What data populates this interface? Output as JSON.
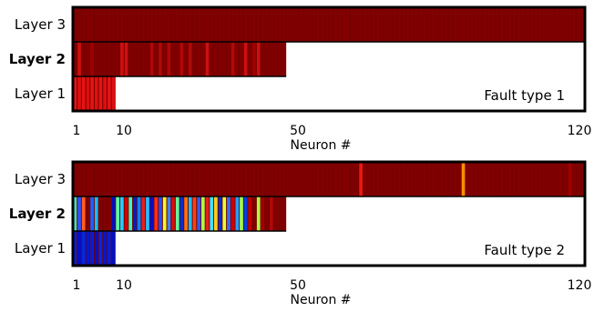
{
  "chart_data": [
    {
      "type": "heatmap",
      "annotation": "Fault type 1",
      "xlabel": "Neuron #",
      "xticks": [
        "1",
        "10",
        "50",
        "120"
      ],
      "x_tick_values": [
        1,
        10,
        50,
        120
      ],
      "colormap": "jet",
      "background_color": "#800000",
      "layers": [
        {
          "label": "Layer 3",
          "neurons": 120,
          "highlights": []
        },
        {
          "label": "Layer 2",
          "neurons": 50,
          "highlights": [
            {
              "neuron": 2,
              "color": "#cc1010"
            },
            {
              "neuron": 5,
              "color": "#a00000"
            },
            {
              "neuron": 12,
              "color": "#cc1010"
            },
            {
              "neuron": 13,
              "color": "#cc1010"
            },
            {
              "neuron": 19,
              "color": "#b00808"
            },
            {
              "neuron": 21,
              "color": "#b00808"
            },
            {
              "neuron": 23,
              "color": "#b00808"
            },
            {
              "neuron": 26,
              "color": "#b00808"
            },
            {
              "neuron": 28,
              "color": "#b00808"
            },
            {
              "neuron": 32,
              "color": "#cc1010"
            },
            {
              "neuron": 38,
              "color": "#b00808"
            },
            {
              "neuron": 41,
              "color": "#cc1010"
            },
            {
              "neuron": 43,
              "color": "#a00000"
            },
            {
              "neuron": 44,
              "color": "#cc1010"
            }
          ]
        },
        {
          "label": "Layer 1",
          "neurons": 10,
          "highlights": [
            {
              "neuron": 1,
              "color": "#e41414"
            },
            {
              "neuron": 2,
              "color": "#dc1010"
            },
            {
              "neuron": 3,
              "color": "#e41414"
            },
            {
              "neuron": 4,
              "color": "#d81010"
            },
            {
              "neuron": 5,
              "color": "#e41414"
            },
            {
              "neuron": 6,
              "color": "#dc1010"
            },
            {
              "neuron": 7,
              "color": "#e41414"
            },
            {
              "neuron": 8,
              "color": "#d81010"
            },
            {
              "neuron": 9,
              "color": "#e41414"
            },
            {
              "neuron": 10,
              "color": "#dc1010"
            }
          ]
        }
      ]
    },
    {
      "type": "heatmap",
      "annotation": "Fault type 2",
      "xlabel": "Neuron #",
      "xticks": [
        "1",
        "10",
        "50",
        "120"
      ],
      "x_tick_values": [
        1,
        10,
        50,
        120
      ],
      "colormap": "jet",
      "background_color": "#800000",
      "layers": [
        {
          "label": "Layer 3",
          "neurons": 120,
          "highlights": [
            {
              "neuron": 68,
              "color": "#e61a10"
            },
            {
              "neuron": 92,
              "color": "#ff8c00"
            },
            {
              "neuron": 117,
              "color": "#a00000"
            }
          ]
        },
        {
          "label": "Layer 2",
          "neurons": 50,
          "highlights": [
            {
              "neuron": 1,
              "color": "#40e0c0"
            },
            {
              "neuron": 2,
              "color": "#3050ff"
            },
            {
              "neuron": 3,
              "color": "#ff6020"
            },
            {
              "neuron": 5,
              "color": "#2060ff"
            },
            {
              "neuron": 6,
              "color": "#10c0ff"
            },
            {
              "neuron": 10,
              "color": "#0010c0"
            },
            {
              "neuron": 11,
              "color": "#60ffa0"
            },
            {
              "neuron": 12,
              "color": "#20d0ff"
            },
            {
              "neuron": 13,
              "color": "#d00000"
            },
            {
              "neuron": 14,
              "color": "#40ffc0"
            },
            {
              "neuron": 15,
              "color": "#0020c0"
            },
            {
              "neuron": 16,
              "color": "#1080ff"
            },
            {
              "neuron": 17,
              "color": "#e02020"
            },
            {
              "neuron": 18,
              "color": "#20c0ff"
            },
            {
              "neuron": 19,
              "color": "#0010d0"
            },
            {
              "neuron": 20,
              "color": "#ff3010"
            },
            {
              "neuron": 21,
              "color": "#2050ff"
            },
            {
              "neuron": 22,
              "color": "#f0ff20"
            },
            {
              "neuron": 23,
              "color": "#4080ff"
            },
            {
              "neuron": 24,
              "color": "#d01010"
            },
            {
              "neuron": 25,
              "color": "#60ffa0"
            },
            {
              "neuron": 26,
              "color": "#0030d0"
            },
            {
              "neuron": 27,
              "color": "#ff7010"
            },
            {
              "neuron": 28,
              "color": "#10c0ff"
            },
            {
              "neuron": 29,
              "color": "#ff4010"
            },
            {
              "neuron": 30,
              "color": "#2060ff"
            },
            {
              "neuron": 31,
              "color": "#b0ff40"
            },
            {
              "neuron": 32,
              "color": "#e02020"
            },
            {
              "neuron": 33,
              "color": "#40e0ff"
            },
            {
              "neuron": 34,
              "color": "#ffd020"
            },
            {
              "neuron": 35,
              "color": "#0030d0"
            },
            {
              "neuron": 36,
              "color": "#e8ff30"
            },
            {
              "neuron": 37,
              "color": "#3070ff"
            },
            {
              "neuron": 38,
              "color": "#d00000"
            },
            {
              "neuron": 39,
              "color": "#20a0ff"
            },
            {
              "neuron": 40,
              "color": "#a0ff50"
            },
            {
              "neuron": 41,
              "color": "#0040e0"
            },
            {
              "neuron": 42,
              "color": "#c00000"
            },
            {
              "neuron": 44,
              "color": "#b0ff40"
            },
            {
              "neuron": 45,
              "color": "#a00000"
            },
            {
              "neuron": 47,
              "color": "#b00808"
            }
          ]
        },
        {
          "label": "Layer 1",
          "neurons": 10,
          "highlights": [
            {
              "neuron": 1,
              "color": "#0020d8"
            },
            {
              "neuron": 2,
              "color": "#0010c8"
            },
            {
              "neuron": 3,
              "color": "#0028e0"
            },
            {
              "neuron": 4,
              "color": "#0018d0"
            },
            {
              "neuron": 5,
              "color": "#0020d8"
            },
            {
              "neuron": 6,
              "color": "#0010c8"
            },
            {
              "neuron": 7,
              "color": "#0028e0"
            },
            {
              "neuron": 8,
              "color": "#0018d0"
            },
            {
              "neuron": 9,
              "color": "#0020d8"
            },
            {
              "neuron": 10,
              "color": "#0010c8"
            }
          ]
        }
      ]
    }
  ]
}
